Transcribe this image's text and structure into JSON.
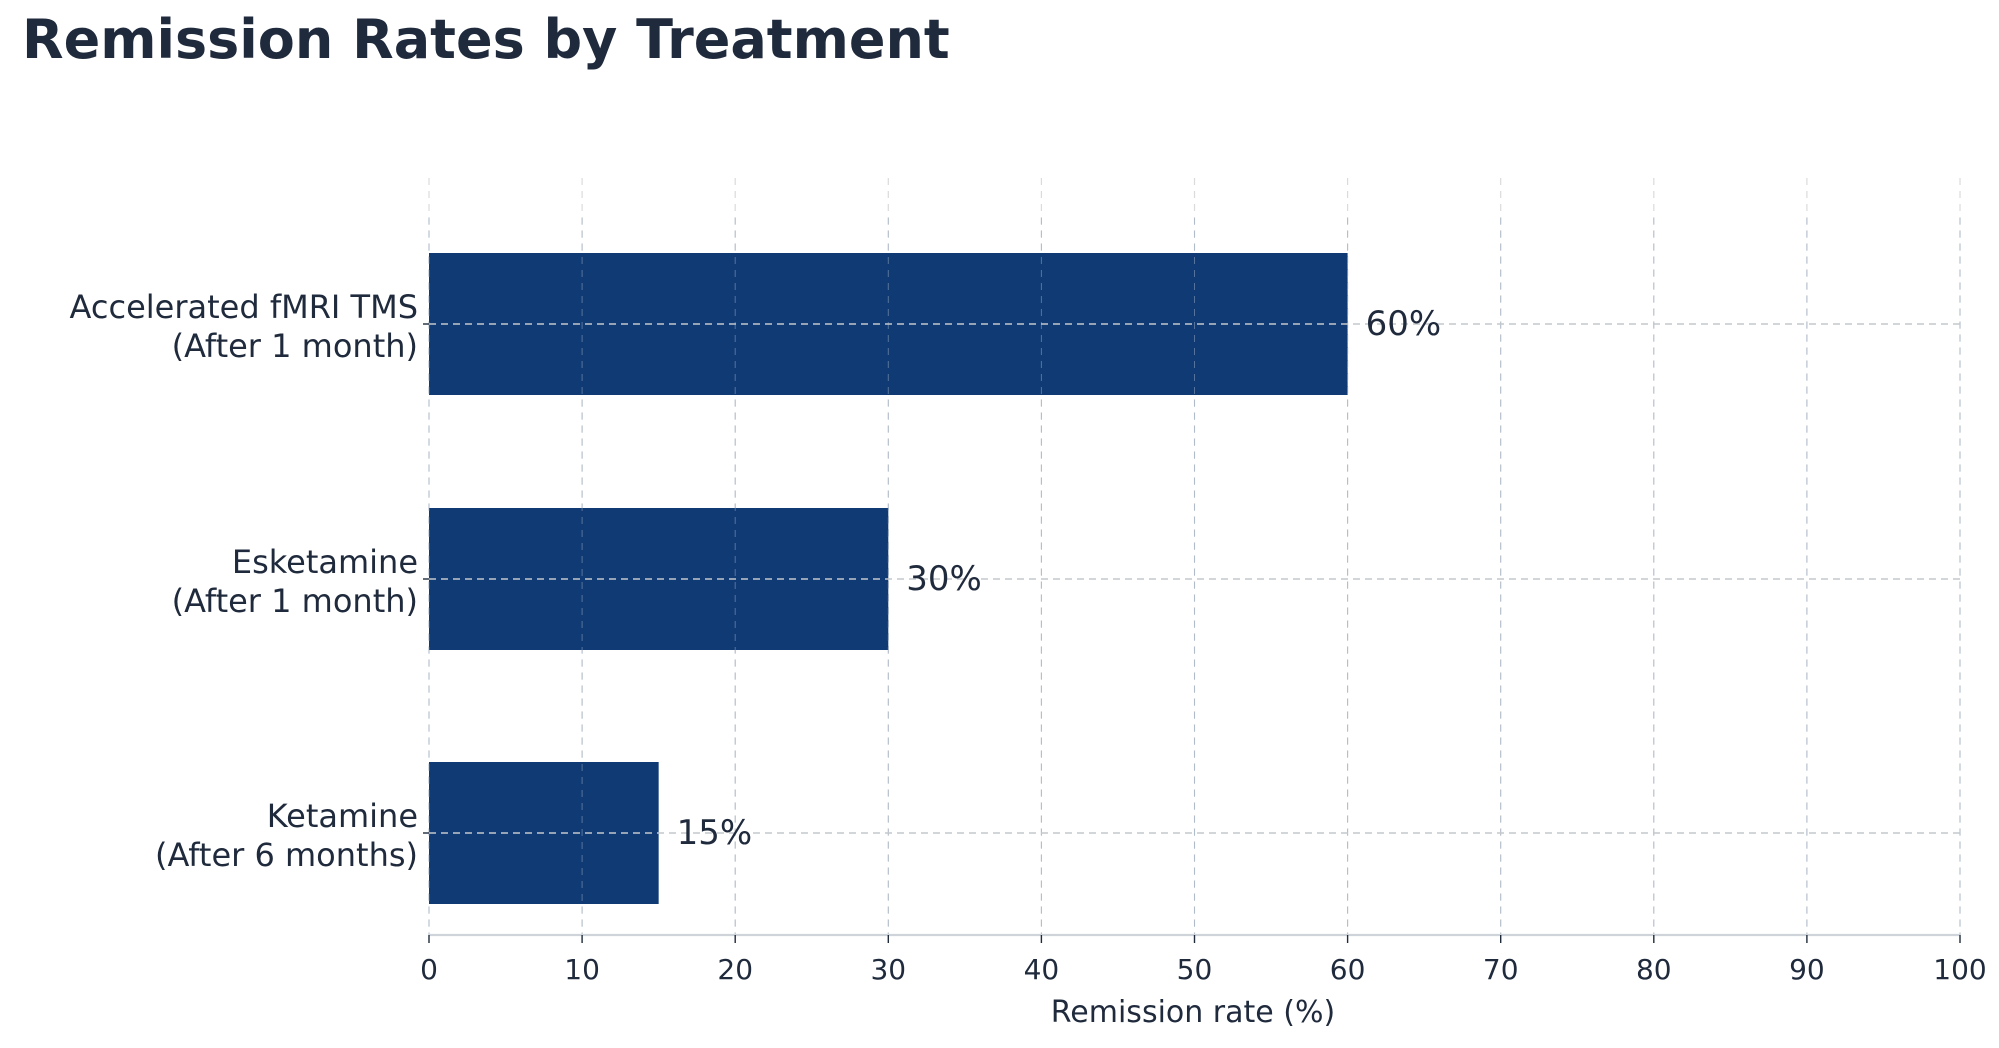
{
  "chart_data": {
    "type": "bar",
    "orientation": "horizontal",
    "title": "Remission Rates by Treatment",
    "xlabel": "Remission rate (%)",
    "ylabel": "",
    "categories": [
      [
        "Accelerated fMRI TMS",
        "(After 1 month)"
      ],
      [
        "Esketamine",
        "(After 1 month)"
      ],
      [
        "Ketamine",
        "(After 6 months)"
      ]
    ],
    "values": [
      60,
      30,
      15
    ],
    "value_labels": [
      "60%",
      "30%",
      "15%"
    ],
    "xlim": [
      0,
      100
    ],
    "xticks": [
      "0",
      "10",
      "20",
      "30",
      "40",
      "50",
      "60",
      "70",
      "80",
      "90",
      "100"
    ],
    "grid": true,
    "legend": "none",
    "colors": {
      "bar": "#103a73",
      "text": "#1f2a3c",
      "grid": "#cccccc",
      "axis": "#cfd4da"
    }
  }
}
